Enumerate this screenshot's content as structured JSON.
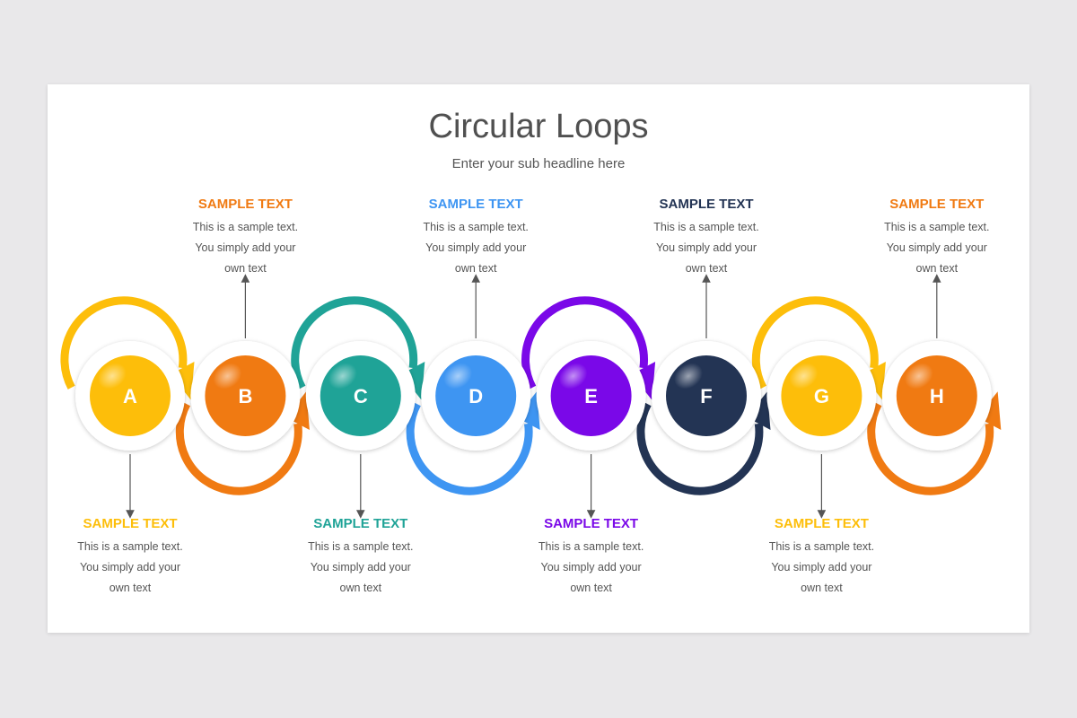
{
  "title": "Circular Loops",
  "subtitle": "Enter your sub headline here",
  "steps": [
    {
      "letter": "A",
      "color": "#FDBE0A",
      "position": "bottom",
      "heading": "SAMPLE TEXT",
      "lines": [
        "This is a sample text.",
        "You simply add your",
        "own text"
      ]
    },
    {
      "letter": "B",
      "color": "#F07A12",
      "position": "top",
      "heading": "SAMPLE TEXT",
      "lines": [
        "This is a sample text.",
        "You simply add your",
        "own text"
      ]
    },
    {
      "letter": "C",
      "color": "#1FA397",
      "position": "bottom",
      "heading": "SAMPLE TEXT",
      "lines": [
        "This is a sample text.",
        "You simply add your",
        "own text"
      ]
    },
    {
      "letter": "D",
      "color": "#3E95F2",
      "position": "top",
      "heading": "SAMPLE TEXT",
      "lines": [
        "This is a sample text.",
        "You simply add your",
        "own text"
      ]
    },
    {
      "letter": "E",
      "color": "#7A08E8",
      "position": "bottom",
      "heading": "SAMPLE TEXT",
      "lines": [
        "This is a sample text.",
        "You simply add your",
        "own text"
      ]
    },
    {
      "letter": "F",
      "color": "#233454",
      "position": "top",
      "heading": "SAMPLE TEXT",
      "lines": [
        "This is a sample text.",
        "You simply add your",
        "own text"
      ]
    },
    {
      "letter": "G",
      "color": "#FDBE0A",
      "position": "bottom",
      "heading": "SAMPLE TEXT",
      "lines": [
        "This is a sample text.",
        "You simply add your",
        "own text"
      ]
    },
    {
      "letter": "H",
      "color": "#F07A12",
      "position": "top",
      "heading": "SAMPLE TEXT",
      "lines": [
        "This is a sample text.",
        "You simply add your",
        "own text"
      ]
    }
  ]
}
